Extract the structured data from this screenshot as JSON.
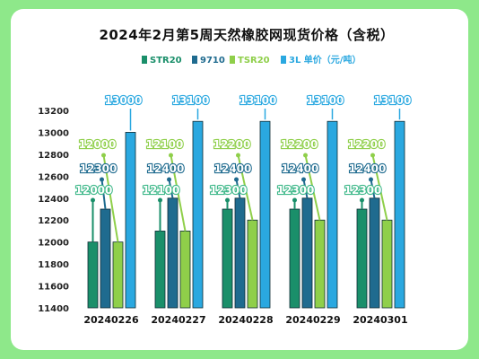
{
  "chart_data": {
    "type": "bar",
    "title": "2024年2月第5周天然橡胶网现货价格（含税）",
    "categories": [
      "20240226",
      "20240227",
      "20240228",
      "20240229",
      "20240301"
    ],
    "series": [
      {
        "name": "STR20",
        "values": [
          12000,
          12100,
          12300,
          12300,
          12300
        ],
        "color": "#1a8f6a"
      },
      {
        "name": "9710",
        "values": [
          12300,
          12400,
          12400,
          12400,
          12400
        ],
        "color": "#1f6b8f"
      },
      {
        "name": "TSR20",
        "values": [
          12000,
          12100,
          12200,
          12200,
          12200
        ],
        "color": "#8fcf4a"
      },
      {
        "name": "3L 单价（元/吨）",
        "values": [
          13000,
          13100,
          13100,
          13100,
          13100
        ],
        "color": "#2aa8e0"
      }
    ],
    "yticks": [
      11400,
      11600,
      11800,
      12000,
      12200,
      12400,
      12600,
      12800,
      13000,
      13200
    ],
    "ylim": [
      11400,
      13200
    ],
    "grid": false,
    "legend_position": "top"
  },
  "colors": {
    "frame": "#8ee88a",
    "label_green": "#8fcf4a",
    "label_teal": "#1a8f6a",
    "label_blue": "#1f6b8f",
    "label_cyan": "#2aa8e0"
  }
}
